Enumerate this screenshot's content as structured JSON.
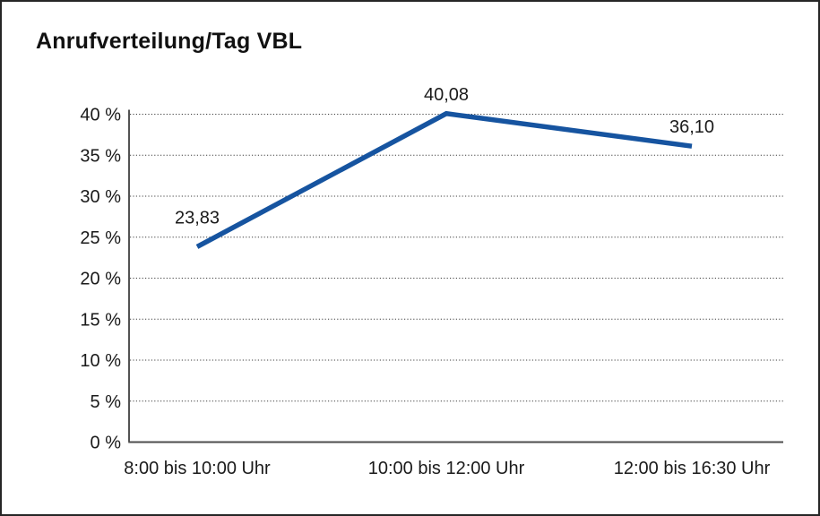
{
  "window": {
    "title": "Anrufverteilung/Tag VBL"
  },
  "chart_data": {
    "type": "line",
    "title": "Anrufverteilung/Tag VBL",
    "categories": [
      "8:00 bis 10:00 Uhr",
      "10:00 bis 12:00 Uhr",
      "12:00 bis 16:30 Uhr"
    ],
    "series": [
      {
        "name": "",
        "values": [
          23.83,
          40.08,
          36.1
        ]
      }
    ],
    "point_labels": [
      "23,83",
      "40,08",
      "36,10"
    ],
    "xlabel": "",
    "ylabel": "",
    "ylim": [
      0,
      40
    ],
    "y_tick_step": 5,
    "y_tick_labels": [
      "0 %",
      "5 %",
      "10 %",
      "15 %",
      "20 %",
      "25 %",
      "30 %",
      "35 %",
      "40 %"
    ],
    "y_tick_unit": "%",
    "grid": "horizontal-dotted",
    "legend_position": "none",
    "colors": {
      "line": "#1654A0",
      "text": "#1a1a1a",
      "x_axis": "#4d4d4d",
      "y_axis": "#1a1a1a",
      "gridline": "#3d3d3d",
      "background": "#ffffff",
      "frame_border": "#262626"
    }
  }
}
